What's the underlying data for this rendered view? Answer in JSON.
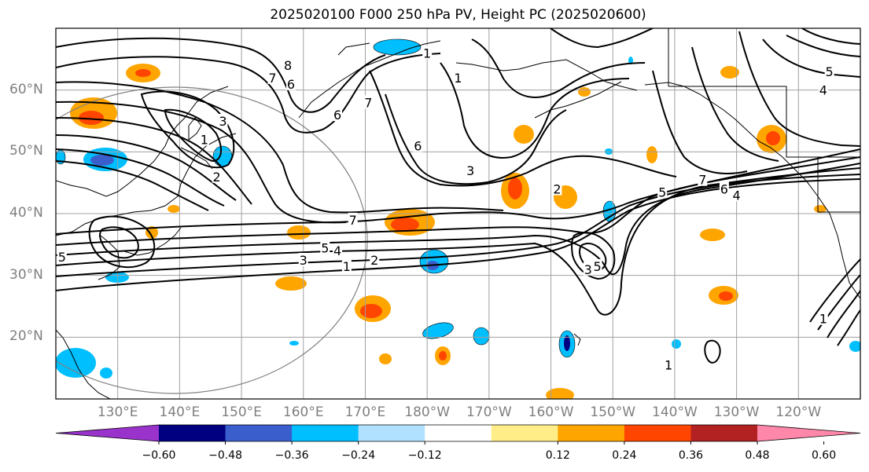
{
  "title": "2025020100 F000 250 hPa PV, Height PC (2025020600)",
  "map": {
    "projection": "equirectangular",
    "lon_range": [
      120,
      250
    ],
    "lat_range": [
      10,
      70
    ],
    "lat_ticks": [
      "20°N",
      "30°N",
      "40°N",
      "50°N",
      "60°N"
    ],
    "lon_ticks": [
      "130°E",
      "140°E",
      "150°E",
      "160°E",
      "170°E",
      "180°W",
      "170°W",
      "160°W",
      "150°W",
      "140°W",
      "130°W",
      "120°W"
    ],
    "grid": true
  },
  "colorbar": {
    "colors": [
      "#9933cc",
      "#000080",
      "#3a5fcd",
      "#00bfff",
      "#b0e2ff",
      "#ffffff",
      "#ffee88",
      "#ffa500",
      "#ff4500",
      "#b22222",
      "#ff88aa"
    ],
    "tick_labels": [
      "−0.60",
      "−0.48",
      "−0.36",
      "−0.24",
      "−0.12",
      "0.12",
      "0.24",
      "0.36",
      "0.48",
      "0.60"
    ],
    "extend": "both"
  },
  "contour_labels": [
    {
      "text": "8",
      "lon": 157.5,
      "lat": 64
    },
    {
      "text": "7",
      "lon": 155,
      "lat": 62
    },
    {
      "text": "6",
      "lon": 158,
      "lat": 61
    },
    {
      "text": "3",
      "lon": 147,
      "lat": 55
    },
    {
      "text": "1",
      "lon": 144,
      "lat": 52
    },
    {
      "text": "2",
      "lon": 146,
      "lat": 46
    },
    {
      "text": "7",
      "lon": 170.5,
      "lat": 58
    },
    {
      "text": "6",
      "lon": 165.5,
      "lat": 56
    },
    {
      "text": "1",
      "lon": 180,
      "lat": 66
    },
    {
      "text": "1",
      "lon": 185,
      "lat": 62
    },
    {
      "text": "6",
      "lon": 178.5,
      "lat": 51
    },
    {
      "text": "3",
      "lon": 187,
      "lat": 47
    },
    {
      "text": "7",
      "lon": 168,
      "lat": 39
    },
    {
      "text": "5",
      "lon": 163.5,
      "lat": 34.5
    },
    {
      "text": "4",
      "lon": 165.5,
      "lat": 34
    },
    {
      "text": "3",
      "lon": 160,
      "lat": 32.5
    },
    {
      "text": "2",
      "lon": 171.5,
      "lat": 32.5
    },
    {
      "text": "1",
      "lon": 167,
      "lat": 31.5
    },
    {
      "text": "2",
      "lon": 201,
      "lat": 44
    },
    {
      "text": "3",
      "lon": 206,
      "lat": 31
    },
    {
      "text": "5",
      "lon": 207.5,
      "lat": 31.5
    },
    {
      "text": "5",
      "lon": 218,
      "lat": 43.5
    },
    {
      "text": "7",
      "lon": 224.5,
      "lat": 45.5
    },
    {
      "text": "6",
      "lon": 228,
      "lat": 44
    },
    {
      "text": "4",
      "lon": 230,
      "lat": 43
    },
    {
      "text": "5",
      "lon": 245,
      "lat": 63
    },
    {
      "text": "4",
      "lon": 244,
      "lat": 60
    },
    {
      "text": "1",
      "lon": 219,
      "lat": 15.5
    },
    {
      "text": "5",
      "lon": 121,
      "lat": 33
    },
    {
      "text": "1",
      "lon": 244,
      "lat": 23
    }
  ]
}
